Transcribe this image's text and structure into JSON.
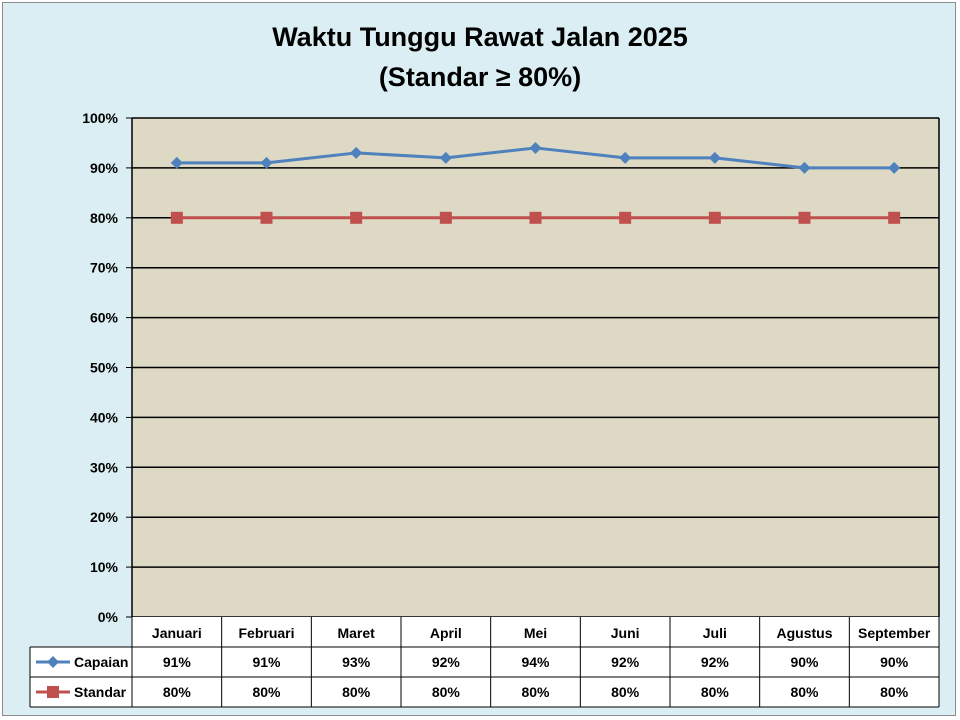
{
  "chart_data": {
    "type": "line",
    "title": "Waktu Tunggu Rawat Jalan 2025",
    "subtitle": "(Standar ≥ 80%)",
    "categories": [
      "Januari",
      "Februari",
      "Maret",
      "April",
      "Mei",
      "Juni",
      "Juli",
      "Agustus",
      "September"
    ],
    "series": [
      {
        "name": "Capaian",
        "values": [
          91,
          91,
          93,
          92,
          94,
          92,
          92,
          90,
          90
        ],
        "labels": [
          "91%",
          "91%",
          "93%",
          "92%",
          "94%",
          "92%",
          "92%",
          "90%",
          "90%"
        ],
        "color": "#4f81bd",
        "marker": "diamond-icon"
      },
      {
        "name": "Standar",
        "values": [
          80,
          80,
          80,
          80,
          80,
          80,
          80,
          80,
          80
        ],
        "labels": [
          "80%",
          "80%",
          "80%",
          "80%",
          "80%",
          "80%",
          "80%",
          "80%",
          "80%"
        ],
        "color": "#c0504d",
        "marker": "square-icon"
      }
    ],
    "ylim": [
      0,
      100
    ],
    "yticks": [
      "0%",
      "10%",
      "20%",
      "30%",
      "40%",
      "50%",
      "60%",
      "70%",
      "80%",
      "90%",
      "100%"
    ],
    "grid": true,
    "legend": "data-table",
    "plot_background": "#ddd9c4",
    "chart_background": "#daeef3"
  }
}
